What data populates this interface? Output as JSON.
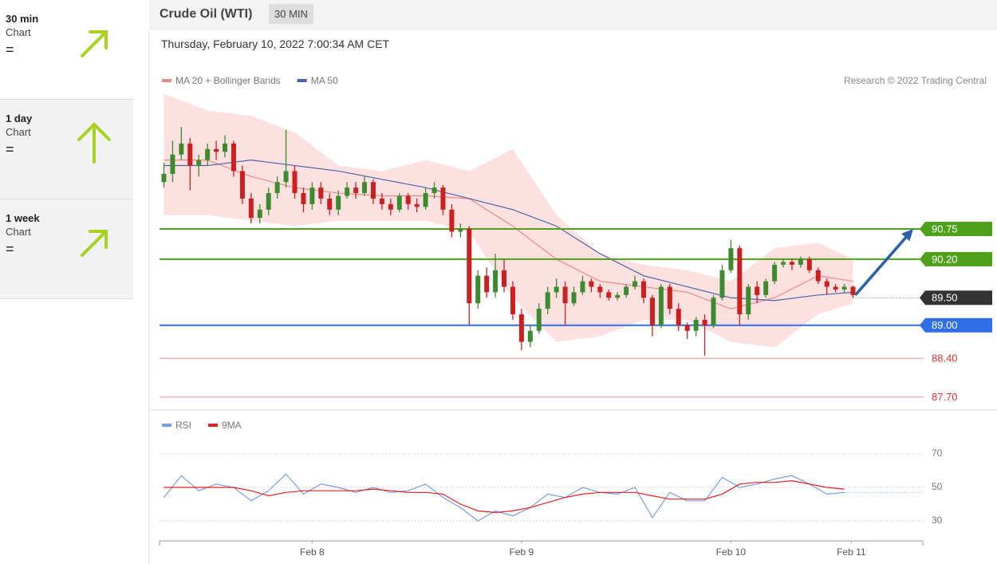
{
  "sidebar": [
    {
      "period": "30 min",
      "label": "Chart",
      "signal": "="
    },
    {
      "period": "1 day",
      "label": "Chart",
      "signal": "="
    },
    {
      "period": "1 week",
      "label": "Chart",
      "signal": "="
    }
  ],
  "header": {
    "title": "Crude Oil (WTI)",
    "badge": "30 MIN",
    "timestamp": "Thursday, February 10, 2022 7:00:34 AM CET"
  },
  "chart_data": {
    "type": "candlestick",
    "credit": "Research © 2022 Trading Central",
    "up_color": "#3d8b2f",
    "down_color": "#cc2020",
    "xlim": [
      -0.5,
      87
    ],
    "xticks": [
      {
        "value": 17,
        "label": "Feb 8"
      },
      {
        "value": 41,
        "label": "Feb 9"
      },
      {
        "value": 65,
        "label": "Feb 10"
      },
      {
        "value": 78.8,
        "label": "Feb 11"
      }
    ],
    "ylim": [
      87.52,
      93.24
    ],
    "ohlc": [
      [
        91.6,
        91.95,
        91.5,
        91.75
      ],
      [
        91.75,
        92.35,
        91.6,
        92.1
      ],
      [
        92.1,
        92.6,
        92.0,
        92.3
      ],
      [
        92.3,
        92.4,
        91.45,
        91.9
      ],
      [
        91.9,
        92.1,
        91.7,
        92.0
      ],
      [
        92.0,
        92.3,
        91.9,
        92.2
      ],
      [
        92.2,
        92.35,
        92.0,
        92.15
      ],
      [
        92.15,
        92.45,
        92.05,
        92.3
      ],
      [
        92.3,
        92.35,
        91.7,
        91.8
      ],
      [
        91.8,
        91.9,
        91.2,
        91.3
      ],
      [
        91.3,
        91.4,
        90.85,
        90.95
      ],
      [
        90.95,
        91.2,
        90.85,
        91.1
      ],
      [
        91.1,
        91.5,
        91.0,
        91.4
      ],
      [
        91.4,
        91.7,
        91.3,
        91.6
      ],
      [
        91.6,
        92.55,
        91.5,
        91.8
      ],
      [
        91.8,
        91.9,
        91.3,
        91.4
      ],
      [
        91.4,
        91.5,
        91.05,
        91.2
      ],
      [
        91.2,
        91.6,
        91.1,
        91.5
      ],
      [
        91.5,
        91.6,
        91.2,
        91.3
      ],
      [
        91.3,
        91.4,
        91.0,
        91.1
      ],
      [
        91.1,
        91.45,
        91.0,
        91.35
      ],
      [
        91.35,
        91.6,
        91.3,
        91.5
      ],
      [
        91.5,
        91.6,
        91.3,
        91.4
      ],
      [
        91.4,
        91.7,
        91.35,
        91.6
      ],
      [
        91.6,
        91.65,
        91.2,
        91.3
      ],
      [
        91.3,
        91.4,
        91.1,
        91.2
      ],
      [
        91.2,
        91.3,
        91.0,
        91.1
      ],
      [
        91.1,
        91.4,
        91.05,
        91.35
      ],
      [
        91.35,
        91.4,
        91.1,
        91.2
      ],
      [
        91.2,
        91.3,
        91.05,
        91.15
      ],
      [
        91.15,
        91.5,
        91.1,
        91.4
      ],
      [
        91.4,
        91.6,
        91.3,
        91.5
      ],
      [
        91.5,
        91.55,
        91.0,
        91.1
      ],
      [
        91.1,
        91.2,
        90.6,
        90.7
      ],
      [
        90.7,
        90.85,
        90.6,
        90.75
      ],
      [
        90.75,
        90.8,
        89.0,
        89.4
      ],
      [
        89.4,
        90.0,
        89.3,
        89.9
      ],
      [
        89.9,
        90.05,
        89.5,
        89.6
      ],
      [
        89.6,
        90.3,
        89.5,
        90.0
      ],
      [
        90.0,
        90.2,
        89.6,
        89.7
      ],
      [
        89.7,
        89.8,
        89.1,
        89.2
      ],
      [
        89.2,
        89.3,
        88.55,
        88.7
      ],
      [
        88.7,
        89.0,
        88.6,
        88.9
      ],
      [
        88.9,
        89.4,
        88.85,
        89.3
      ],
      [
        89.3,
        89.7,
        89.2,
        89.6
      ],
      [
        89.6,
        89.85,
        89.5,
        89.7
      ],
      [
        89.7,
        89.8,
        89.0,
        89.4
      ],
      [
        89.4,
        89.7,
        89.35,
        89.6
      ],
      [
        89.6,
        89.9,
        89.55,
        89.8
      ],
      [
        89.8,
        89.85,
        89.6,
        89.7
      ],
      [
        89.7,
        89.75,
        89.5,
        89.6
      ],
      [
        89.6,
        89.65,
        89.45,
        89.5
      ],
      [
        89.5,
        89.6,
        89.45,
        89.55
      ],
      [
        89.55,
        89.75,
        89.5,
        89.7
      ],
      [
        89.7,
        89.9,
        89.65,
        89.8
      ],
      [
        89.8,
        89.85,
        89.4,
        89.5
      ],
      [
        89.5,
        89.55,
        88.8,
        89.0
      ],
      [
        89.0,
        89.75,
        88.95,
        89.7
      ],
      [
        89.7,
        89.75,
        89.2,
        89.3
      ],
      [
        89.3,
        89.4,
        88.9,
        89.0
      ],
      [
        89.0,
        89.05,
        88.75,
        88.9
      ],
      [
        88.9,
        89.15,
        88.8,
        89.1
      ],
      [
        89.1,
        89.2,
        88.45,
        89.0
      ],
      [
        89.0,
        89.55,
        88.95,
        89.5
      ],
      [
        89.5,
        90.1,
        89.45,
        90.0
      ],
      [
        90.0,
        90.55,
        89.95,
        90.4
      ],
      [
        90.4,
        90.45,
        89.0,
        89.2
      ],
      [
        89.2,
        89.75,
        89.1,
        89.7
      ],
      [
        89.7,
        89.8,
        89.4,
        89.55
      ],
      [
        89.55,
        89.85,
        89.5,
        89.8
      ],
      [
        89.8,
        90.15,
        89.75,
        90.1
      ],
      [
        90.1,
        90.2,
        90.05,
        90.15
      ],
      [
        90.15,
        90.2,
        90.0,
        90.1
      ],
      [
        90.1,
        90.25,
        90.05,
        90.2
      ],
      [
        90.2,
        90.25,
        89.95,
        90.0
      ],
      [
        90.0,
        90.05,
        89.75,
        89.8
      ],
      [
        89.8,
        89.85,
        89.55,
        89.7
      ],
      [
        89.7,
        89.75,
        89.6,
        89.65
      ],
      [
        89.65,
        89.75,
        89.6,
        89.7
      ],
      [
        89.7,
        89.72,
        89.5,
        89.55
      ]
    ],
    "series": [
      {
        "name": "MA 20 + Bollinger Bands",
        "color": "#f08a8a",
        "band_color": "#fde0e0",
        "x": [
          0,
          5,
          10,
          15,
          20,
          25,
          30,
          35,
          40,
          45,
          50,
          55,
          60,
          65,
          70,
          75,
          79
        ],
        "values": [
          92.0,
          92.0,
          91.7,
          91.5,
          91.4,
          91.35,
          91.35,
          91.3,
          90.8,
          90.2,
          89.8,
          89.7,
          89.6,
          89.3,
          89.5,
          89.9,
          89.8
        ],
        "upper": [
          93.2,
          92.9,
          92.8,
          92.5,
          91.9,
          91.8,
          92.0,
          91.8,
          92.2,
          91.0,
          90.3,
          90.1,
          90.0,
          89.8,
          90.4,
          90.5,
          90.2
        ],
        "lower": [
          91.0,
          91.0,
          90.9,
          90.8,
          90.9,
          90.9,
          90.9,
          90.7,
          89.5,
          88.7,
          88.8,
          89.1,
          89.1,
          88.7,
          88.6,
          89.2,
          89.4
        ]
      },
      {
        "name": "MA 50",
        "color": "#4a64a8",
        "x": [
          0,
          5,
          10,
          15,
          20,
          25,
          30,
          35,
          40,
          45,
          50,
          55,
          60,
          65,
          70,
          75,
          79
        ],
        "values": [
          91.9,
          91.9,
          92.0,
          91.9,
          91.8,
          91.65,
          91.5,
          91.3,
          91.1,
          90.8,
          90.3,
          89.9,
          89.7,
          89.5,
          89.45,
          89.55,
          89.6
        ]
      }
    ],
    "levels": [
      {
        "value": 90.75,
        "label": "90.75",
        "color": "#4fa01a",
        "style": "box"
      },
      {
        "value": 90.2,
        "label": "90.20",
        "color": "#4fa01a",
        "style": "box"
      },
      {
        "value": 89.5,
        "label": "89.50",
        "color": "#333333",
        "style": "current"
      },
      {
        "value": 89.0,
        "label": "89.00",
        "color": "#2e6ee6",
        "style": "box"
      },
      {
        "value": 88.4,
        "label": "88.40",
        "color": "#f4b3b3",
        "text_color": "#e03030",
        "style": "text"
      },
      {
        "value": 87.7,
        "label": "87.70",
        "color": "#f4b3b3",
        "text_color": "#e03030",
        "style": "text"
      }
    ],
    "target": 90.75
  },
  "rsi_chart": {
    "type": "line",
    "ylim": [
      20,
      80
    ],
    "yticks": [
      70,
      50,
      30
    ],
    "grid": true,
    "x": [
      0,
      2,
      4,
      6,
      8,
      10,
      12,
      14,
      16,
      18,
      20,
      22,
      24,
      26,
      28,
      30,
      32,
      34,
      36,
      38,
      40,
      42,
      44,
      46,
      48,
      50,
      52,
      54,
      56,
      58,
      60,
      62,
      64,
      66,
      68,
      70,
      72,
      74,
      76,
      78
    ],
    "series": [
      {
        "name": "RSI",
        "color": "#7a9be6",
        "values": [
          44,
          57,
          48,
          52,
          50,
          42,
          48,
          58,
          46,
          52,
          50,
          47,
          50,
          47,
          48,
          52,
          44,
          38,
          30,
          36,
          33,
          38,
          46,
          44,
          50,
          47,
          46,
          50,
          32,
          47,
          42,
          42,
          56,
          50,
          52,
          55,
          57,
          52,
          46,
          47
        ]
      },
      {
        "name": "9MA",
        "color": "#e02020",
        "values": [
          50,
          50,
          50,
          50,
          50,
          48,
          45,
          47,
          48,
          48,
          48,
          48,
          49,
          48,
          47,
          47,
          46,
          40,
          36,
          35,
          36,
          38,
          41,
          44,
          46,
          47,
          47,
          47,
          45,
          43,
          43,
          43,
          46,
          52,
          53,
          53,
          54,
          52,
          50,
          49
        ]
      }
    ]
  }
}
